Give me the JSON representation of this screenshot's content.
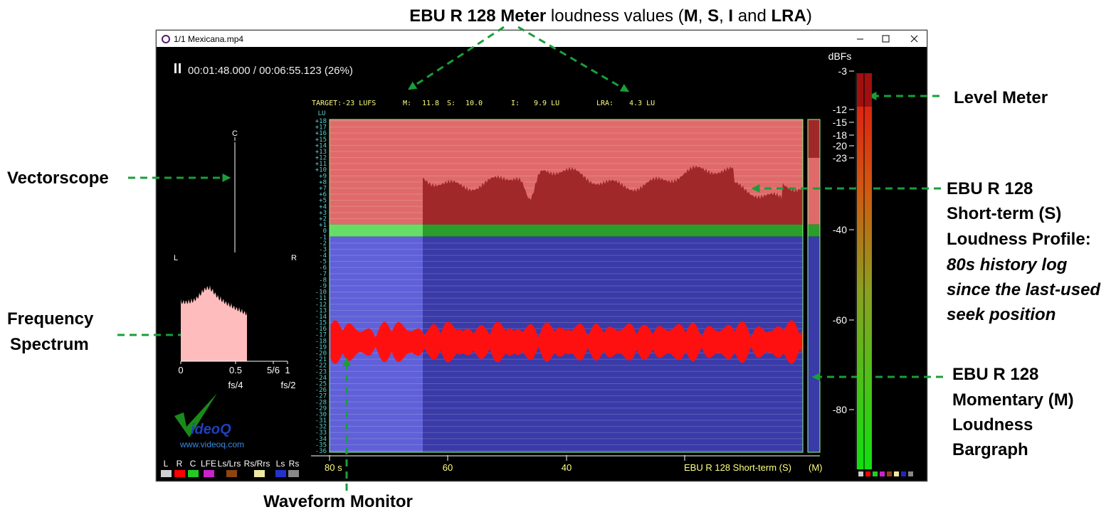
{
  "annotations": {
    "title_parts": [
      {
        "text": "EBU R 128 Meter",
        "bold": true
      },
      {
        "text": " loudness values (",
        "bold": false
      },
      {
        "text": "M",
        "bold": true
      },
      {
        "text": ", ",
        "bold": false
      },
      {
        "text": "S",
        "bold": true
      },
      {
        "text": ", ",
        "bold": false
      },
      {
        "text": "I",
        "bold": true
      },
      {
        "text": " and ",
        "bold": false
      },
      {
        "text": "LRA",
        "bold": true
      },
      {
        "text": ")",
        "bold": false
      }
    ],
    "vectorscope": "Vectorscope",
    "frequency_spectrum": [
      "Frequency",
      "Spectrum"
    ],
    "level_meter": "Level Meter",
    "short_term": [
      "EBU R 128",
      "Short-term (S)",
      "Loudness Profile:"
    ],
    "short_term_note": [
      "80s history log",
      "since the last-used",
      "seek position"
    ],
    "momentary": [
      "EBU R 128",
      "Momentary (M)",
      "Loudness",
      "Bargraph"
    ],
    "waveform": "Waveform Monitor"
  },
  "window": {
    "title": "1/1 Mexicana.mp4",
    "time": "00:01:48.000 / 00:06:55.123 (26%)",
    "meter_readout": [
      "TARGET:-23 LUFS",
      "M:",
      "11.8",
      "S:",
      "10.0",
      "I:",
      "9.9 LU",
      "LRA:",
      "4.3 LU"
    ],
    "lu_unit": "LU",
    "lu_scale": [
      "+18",
      "+17",
      "+16",
      "+15",
      "+14",
      "+13",
      "+12",
      "+11",
      "+10",
      "+9",
      "+8",
      "+7",
      "+6",
      "+5",
      "+4",
      "+3",
      "+2",
      "+1",
      "0",
      "-1",
      "-2",
      "-3",
      "-4",
      "-5",
      "-6",
      "-7",
      "-8",
      "-9",
      "-10",
      "-11",
      "-12",
      "-13",
      "-14",
      "-15",
      "-16",
      "-17",
      "-18",
      "-19",
      "-20",
      "-21",
      "-22",
      "-23",
      "-24",
      "-25",
      "-26",
      "-27",
      "-28",
      "-29",
      "-30",
      "-31",
      "-32",
      "-33",
      "-34",
      "-35",
      "-36"
    ],
    "vectorscope_labels": [
      "C",
      "L",
      "R"
    ],
    "spectrum_ticks": [
      "0",
      "0.5",
      "5/6",
      "1"
    ],
    "spectrum_sub": [
      "fs/4",
      "fs/2"
    ],
    "logo": "ideoQ",
    "url": "www.videoq.com",
    "channels": [
      {
        "name": "L",
        "color": "#d0d0d0"
      },
      {
        "name": "R",
        "color": "#ff0000"
      },
      {
        "name": "C",
        "color": "#22cc22"
      },
      {
        "name": "LFE",
        "color": "#cc22cc"
      },
      {
        "name": "Ls/Lrs",
        "color": "#8b4513"
      },
      {
        "name": "Rs/Rrs",
        "color": "#eee8a0"
      },
      {
        "name": "Ls",
        "color": "#2233cc"
      },
      {
        "name": "Rs",
        "color": "#888888"
      }
    ],
    "time_axis": [
      "80 s",
      "60",
      "40"
    ],
    "profile_label": "EBU R 128 Short-term (S)",
    "momentary_label": "(M)",
    "dbfs_unit": "dBFs",
    "dbfs_scale": [
      "-3",
      "-12",
      "-15",
      "-18",
      "-20",
      "-23",
      "-40",
      "-60",
      "-80"
    ]
  }
}
